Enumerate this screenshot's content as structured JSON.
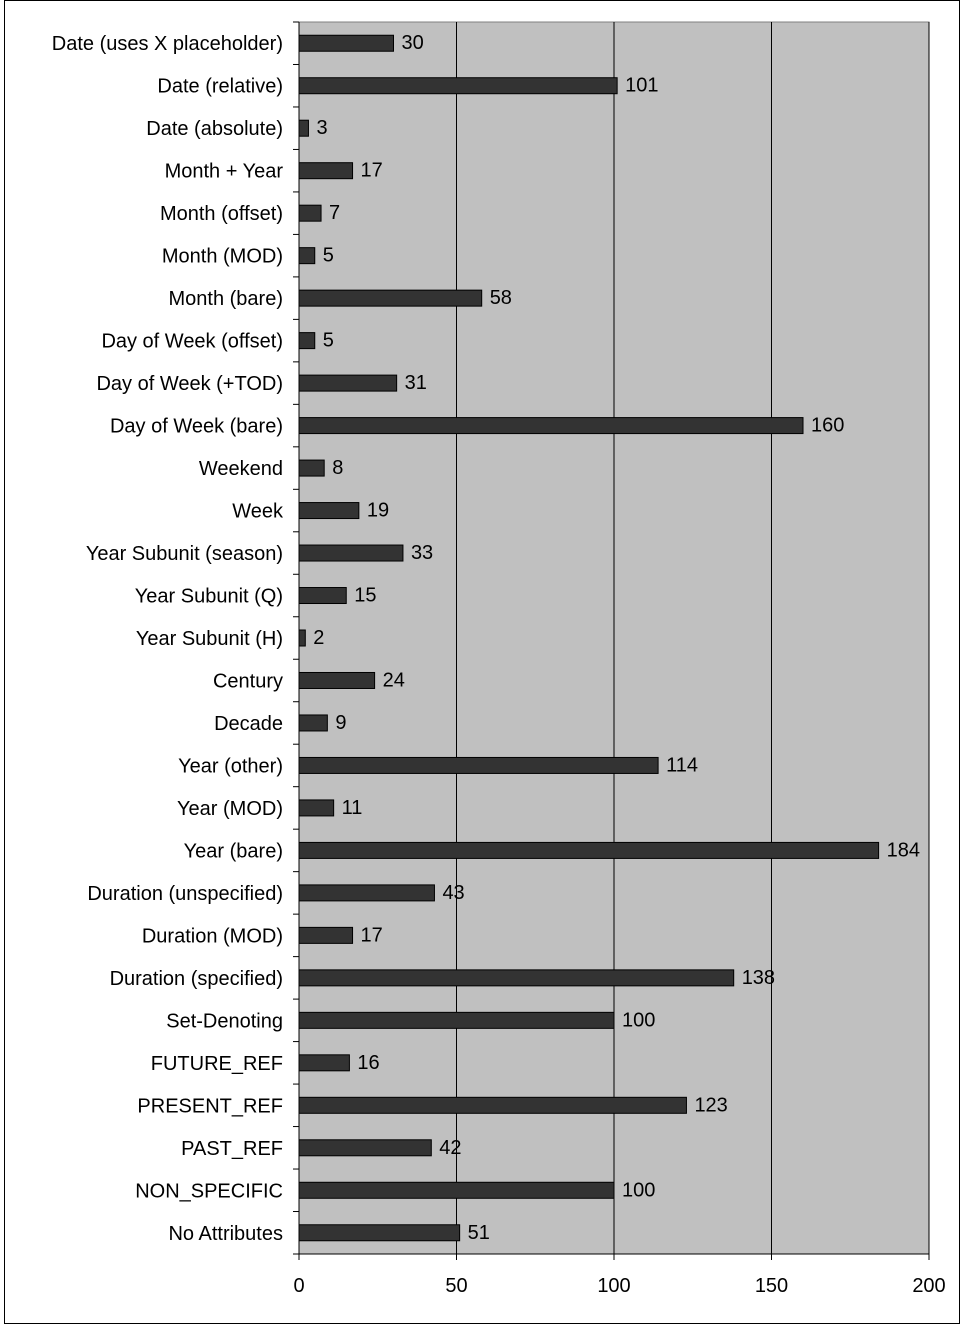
{
  "chart_data": {
    "type": "bar",
    "orientation": "horizontal",
    "categories": [
      "Date (uses X placeholder)",
      "Date (relative)",
      "Date (absolute)",
      "Month + Year",
      "Month (offset)",
      "Month (MOD)",
      "Month (bare)",
      "Day of Week (offset)",
      "Day of Week (+TOD)",
      "Day of Week (bare)",
      "Weekend",
      "Week",
      "Year Subunit (season)",
      "Year Subunit (Q)",
      "Year Subunit (H)",
      "Century",
      "Decade",
      "Year (other)",
      "Year (MOD)",
      "Year (bare)",
      "Duration (unspecified)",
      "Duration (MOD)",
      "Duration (specified)",
      "Set-Denoting",
      "FUTURE_REF",
      "PRESENT_REF",
      "PAST_REF",
      "NON_SPECIFIC",
      "No Attributes"
    ],
    "values": [
      30,
      101,
      3,
      17,
      7,
      5,
      58,
      5,
      31,
      160,
      8,
      19,
      33,
      15,
      2,
      24,
      9,
      114,
      11,
      184,
      43,
      17,
      138,
      100,
      16,
      123,
      42,
      100,
      51
    ],
    "data_labels": [
      "30",
      "101",
      "3",
      "17",
      "7",
      "5",
      "58",
      "5",
      "31",
      "160",
      "8",
      "19",
      "33",
      "15",
      "2",
      "24",
      "9",
      "114",
      "11",
      "184",
      "43",
      "17",
      "138",
      "100",
      "16",
      "123",
      "42",
      "100",
      "51"
    ],
    "xlim": [
      0,
      200
    ],
    "xticks": [
      "0",
      "50",
      "100",
      "150",
      "200"
    ],
    "grid": "vertical gridlines",
    "legend": "none",
    "colors": {
      "plot_background": "#c0c0c0",
      "bar_fill": "#333333",
      "bar_stroke": "#000000",
      "gridline": "#000000"
    }
  }
}
